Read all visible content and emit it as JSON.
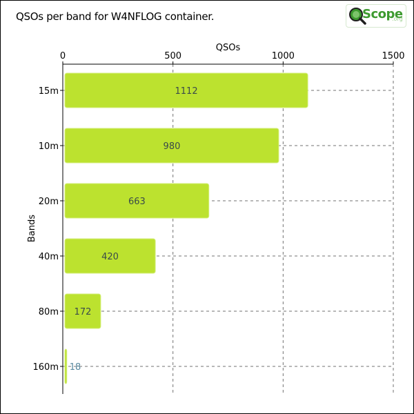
{
  "title": "QSOs per band for W4NFLOG container.",
  "logo": {
    "text": "Scope",
    "suffix": ".org",
    "color": "#3d9a2f"
  },
  "chart_data": {
    "type": "bar",
    "orientation": "horizontal",
    "title": "QSOs per band for W4NFLOG container.",
    "xlabel": "QSOs",
    "ylabel": "Bands",
    "categories": [
      "15m",
      "10m",
      "20m",
      "40m",
      "80m",
      "160m"
    ],
    "values": [
      1112,
      980,
      663,
      420,
      172,
      18
    ],
    "xlim": [
      0,
      1500
    ],
    "xticks": [
      0,
      500,
      1000,
      1500
    ],
    "x_axis_position": "top",
    "grid": true,
    "grid_style": "dashed",
    "data_labels": true,
    "bar_color": "#bce22f",
    "bar_edge_color": "#d4ee7c",
    "label_color": "#3a4a4a",
    "grid_color": "#707070"
  }
}
